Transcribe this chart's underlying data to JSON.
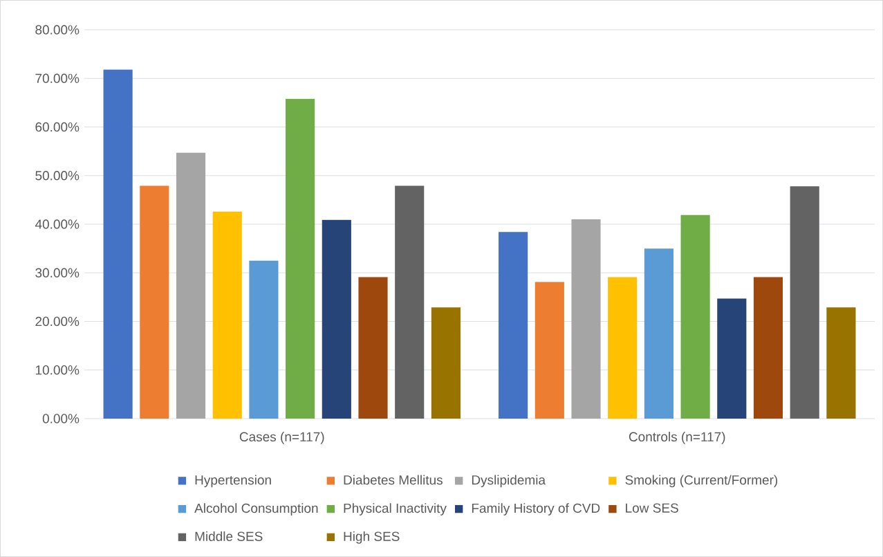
{
  "chart_data": {
    "type": "bar",
    "categories": [
      "Cases (n=117)",
      "Controls (n=117)"
    ],
    "series": [
      {
        "name": "Hypertension",
        "color": "#4472c4",
        "values": [
          71.8,
          38.4
        ]
      },
      {
        "name": "Diabetes Mellitus",
        "color": "#ed7d31",
        "values": [
          47.9,
          28.1
        ]
      },
      {
        "name": "Dyslipidemia",
        "color": "#a5a5a5",
        "values": [
          54.7,
          41.0
        ]
      },
      {
        "name": "Smoking (Current/Former)",
        "color": "#ffc000",
        "values": [
          42.6,
          29.1
        ]
      },
      {
        "name": "Alcohol Consumption",
        "color": "#5b9bd5",
        "values": [
          32.5,
          35.0
        ]
      },
      {
        "name": "Physical Inactivity",
        "color": "#70ad47",
        "values": [
          65.8,
          41.9
        ]
      },
      {
        "name": "Family History of CVD",
        "color": "#264478",
        "values": [
          40.9,
          24.7
        ]
      },
      {
        "name": "Low SES",
        "color": "#9e480e",
        "values": [
          29.1,
          29.1
        ]
      },
      {
        "name": "Middle SES",
        "color": "#636363",
        "values": [
          47.9,
          47.8
        ]
      },
      {
        "name": "High SES",
        "color": "#997300",
        "values": [
          22.9,
          22.9
        ]
      }
    ],
    "ylim": [
      0,
      80
    ],
    "yticks": [
      {
        "value": 0,
        "label": "0.00%"
      },
      {
        "value": 10,
        "label": "10.00%"
      },
      {
        "value": 20,
        "label": "20.00%"
      },
      {
        "value": 30,
        "label": "30.00%"
      },
      {
        "value": 40,
        "label": "40.00%"
      },
      {
        "value": 50,
        "label": "50.00%"
      },
      {
        "value": 60,
        "label": "60.00%"
      },
      {
        "value": 70,
        "label": "70.00%"
      },
      {
        "value": 80,
        "label": "80.00%"
      }
    ],
    "grid": "y",
    "legend": "bottom"
  }
}
